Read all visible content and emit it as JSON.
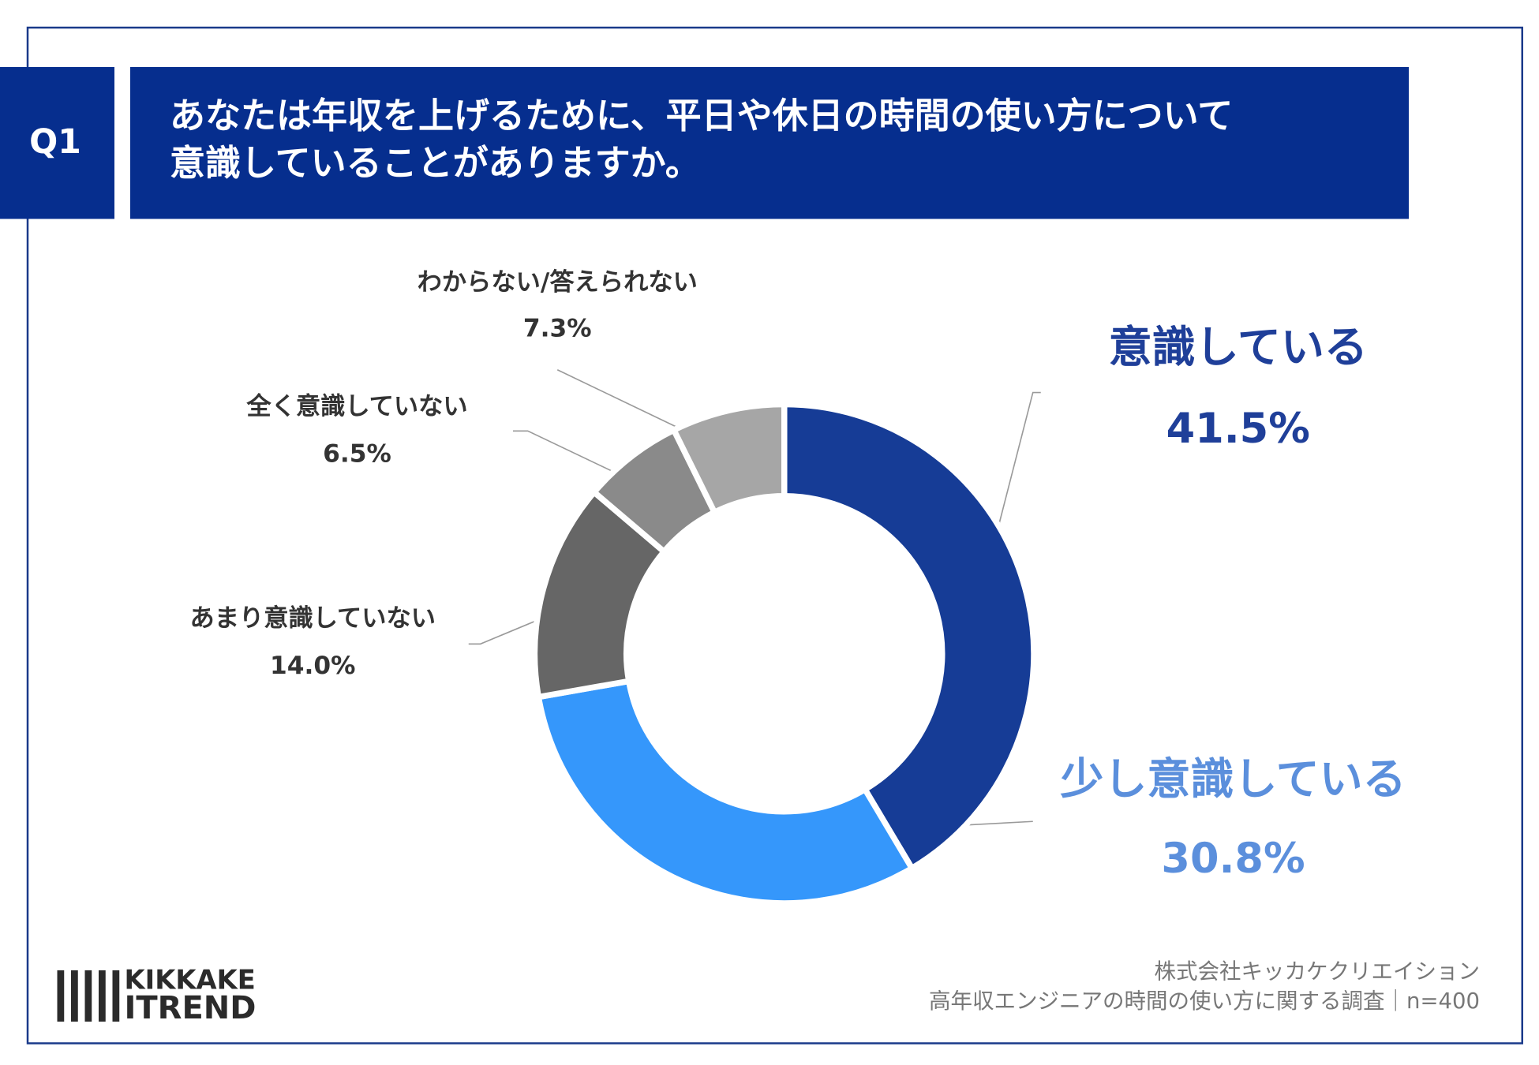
{
  "header": {
    "label": "Q1",
    "lines": [
      "あなたは年収を上げるために、平日や休日の時間の使い方について",
      "意識していることがありますか。"
    ]
  },
  "chart_data": {
    "type": "donut",
    "categories": [
      "意識している",
      "少し意識している",
      "あまり意識していない",
      "全く意識していない",
      "わからない/答えられない"
    ],
    "values": [
      41.5,
      30.8,
      14.0,
      6.5,
      7.3
    ],
    "value_labels": [
      "41.5%",
      "30.8%",
      "14.0%",
      "6.5%",
      "7.3%"
    ],
    "colors": [
      "#163c96",
      "#3597fb",
      "#666666",
      "#8a8a8a",
      "#a6a6a6"
    ],
    "label_colors": [
      "#1f3f99",
      "#5b8fdc",
      "#333333",
      "#333333",
      "#333333"
    ]
  },
  "logo": [
    "KIKKAKE",
    "ITREND"
  ],
  "footer": [
    "株式会社キッカケクリエイション",
    "高年収エンジニアの時間の使い方に関する調査｜n=400"
  ]
}
